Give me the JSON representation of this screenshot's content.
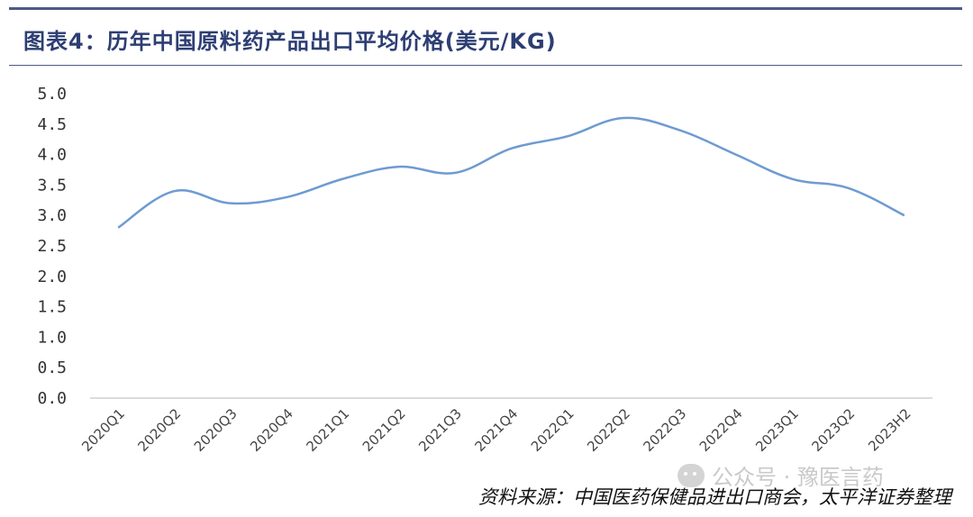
{
  "title": "图表4：历年中国原料药产品出口平均价格(美元/KG)",
  "source": "资料来源：中国医药保健品进出口商会，太平洋证券整理",
  "watermark": "公众号 · 豫医言药",
  "colors": {
    "line": "#6e9bd1",
    "title": "#2d3e73",
    "rule": "#4b5a87",
    "axis": "#d0d0d0"
  },
  "chart_data": {
    "type": "line",
    "title": "",
    "xlabel": "",
    "ylabel": "",
    "ylim": [
      0,
      5
    ],
    "yticks": [
      "0.0",
      "0.5",
      "1.0",
      "1.5",
      "2.0",
      "2.5",
      "3.0",
      "3.5",
      "4.0",
      "4.5",
      "5.0"
    ],
    "categories": [
      "2020Q1",
      "2020Q2",
      "2020Q3",
      "2020Q4",
      "2021Q1",
      "2021Q2",
      "2021Q3",
      "2021Q4",
      "2022Q1",
      "2022Q2",
      "2022Q3",
      "2022Q4",
      "2023Q1",
      "2023Q2",
      "2023H2"
    ],
    "series": [
      {
        "values": [
          2.8,
          3.4,
          3.2,
          3.3,
          3.6,
          3.8,
          3.7,
          4.1,
          4.3,
          4.6,
          4.4,
          4.0,
          3.6,
          3.45,
          3.0
        ]
      }
    ],
    "grid": false,
    "smooth": true
  }
}
